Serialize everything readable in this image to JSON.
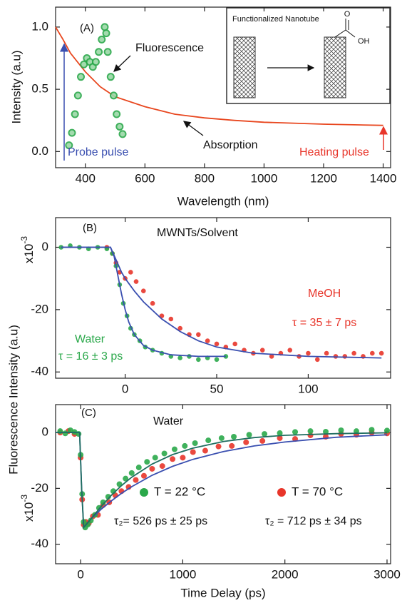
{
  "chart_data": [
    {
      "type": "scatter",
      "ylabel": "Intensity (a.u)",
      "xlabel": "Wavelength (nm)",
      "xlim": [
        300,
        1425
      ],
      "xticks": [
        400,
        600,
        800,
        1000,
        1200,
        1400
      ],
      "ylim": [
        -0.13,
        1.16
      ],
      "yticks": [
        {
          "value": 0,
          "label": "0.0"
        },
        0.5,
        {
          "value": 1,
          "label": "1.0"
        }
      ],
      "series": [
        {
          "mode": "lines",
          "color": "#e8461e",
          "x": [
            300,
            325,
            350,
            400,
            450,
            500,
            600,
            700,
            800,
            900,
            1000,
            1200,
            1400
          ],
          "values": [
            1.0,
            0.9,
            0.79,
            0.64,
            0.52,
            0.44,
            0.36,
            0.3,
            0.27,
            0.25,
            0.235,
            0.22,
            0.21
          ]
        },
        {
          "mode": "markers",
          "color": "#2aa84a",
          "x": [
            345,
            355,
            365,
            375,
            385,
            395,
            405,
            415,
            425,
            435,
            445,
            455,
            465,
            470,
            475,
            485,
            495,
            505,
            515,
            525
          ],
          "values": [
            0.05,
            0.15,
            0.3,
            0.45,
            0.6,
            0.7,
            0.75,
            0.72,
            0.68,
            0.72,
            0.8,
            0.9,
            1.0,
            0.95,
            0.8,
            0.6,
            0.45,
            0.3,
            0.2,
            0.14
          ]
        }
      ],
      "annotations": [
        {
          "text": "(A)",
          "color": "#111"
        },
        {
          "text": "Fluorescence",
          "color": "#111"
        },
        {
          "text": "Absorption",
          "color": "#111"
        },
        {
          "text": "Probe pulse",
          "color": "#3a4fb0"
        },
        {
          "text": "Heating pulse",
          "color": "#e8352a"
        }
      ],
      "inset": {
        "title": "Functionalized Nanotube",
        "labels": [
          "O",
          "OH"
        ]
      }
    },
    {
      "type": "scatter",
      "ylabel": "Fluorescence Intensity (a.u)",
      "multiplier": {
        "base": "x10",
        "exponent": "-3"
      },
      "xlim": [
        -38,
        145
      ],
      "xticks": [
        0,
        50,
        100
      ],
      "ylim": [
        -42,
        9.5
      ],
      "yticks": [
        0,
        -20,
        -40
      ],
      "series": [
        {
          "mode": "markers",
          "color": "#e8352a",
          "x": [
            -10,
            -7,
            -5,
            -3,
            0,
            3,
            6,
            10,
            15,
            20,
            25,
            30,
            35,
            40,
            45,
            50,
            55,
            60,
            65,
            70,
            75,
            80,
            85,
            90,
            95,
            100,
            105,
            110,
            115,
            120,
            125,
            130,
            135,
            140
          ],
          "values": [
            0,
            -2,
            -5,
            -8,
            -10,
            -8,
            -11,
            -14,
            -18,
            -22,
            -23,
            -26,
            -28,
            -28,
            -30,
            -31,
            -32,
            -31,
            -33,
            -34,
            -33,
            -35,
            -34,
            -33,
            -35,
            -34,
            -36,
            -34,
            -35,
            -35,
            -34,
            -35,
            -34,
            -34
          ]
        },
        {
          "mode": "markers",
          "color": "#2aa84a",
          "x": [
            -35,
            -30,
            -25,
            -20,
            -15,
            -10,
            -7,
            -5,
            -3,
            -1,
            1,
            3,
            5,
            8,
            11,
            15,
            20,
            25,
            30,
            35,
            40,
            45,
            50,
            55
          ],
          "values": [
            0,
            0.5,
            0,
            -0.5,
            0,
            -0.5,
            -2,
            -6,
            -12,
            -18,
            -22,
            -26,
            -28,
            -30,
            -32,
            -33,
            -34,
            -35,
            -35.5,
            -35,
            -36,
            -35.5,
            -36,
            -35
          ]
        },
        {
          "mode": "lines",
          "color": "#3a4fb0",
          "x": [
            -35,
            -8,
            -5,
            -2,
            0,
            5,
            10,
            20,
            30,
            40,
            50,
            70,
            100,
            140
          ],
          "values": [
            0,
            0,
            -4,
            -8,
            -10,
            -14,
            -17.5,
            -23,
            -27,
            -30,
            -32,
            -34,
            -35,
            -35.5
          ]
        },
        {
          "mode": "lines",
          "color": "#3a4fb0",
          "x": [
            -35,
            -8,
            -6,
            -4,
            -2,
            0,
            2,
            5,
            10,
            15,
            25,
            40,
            55
          ],
          "values": [
            0,
            0,
            -3,
            -9,
            -15,
            -20,
            -24,
            -28,
            -31.5,
            -33,
            -34.5,
            -35,
            -35
          ]
        }
      ],
      "annotations": [
        {
          "text": "(B)",
          "color": "#111"
        },
        {
          "text": "MWNTs/Solvent",
          "color": "#111"
        },
        {
          "text": "MeOH",
          "color": "#e8352a"
        },
        {
          "text": "τ = 35 ± 7 ps",
          "color": "#e8352a"
        },
        {
          "text": "Water",
          "color": "#2aa84a"
        },
        {
          "text": "τ = 16 ± 3 ps",
          "color": "#2aa84a"
        }
      ]
    },
    {
      "type": "scatter",
      "xlabel": "Time Delay (ps)",
      "multiplier": {
        "base": "x10",
        "exponent": "-3"
      },
      "xlim": [
        -245,
        3035
      ],
      "xticks": [
        0,
        1000,
        2000,
        3000
      ],
      "ylim": [
        -47,
        10
      ],
      "yticks": [
        0,
        -20,
        -40
      ],
      "series": [
        {
          "name": "T = 70 °C",
          "mode": "markers",
          "color": "#e8352a",
          "x": [
            -200,
            -120,
            -60,
            0,
            15,
            30,
            50,
            80,
            120,
            170,
            220,
            280,
            340,
            400,
            470,
            540,
            620,
            700,
            800,
            900,
            1000,
            1100,
            1220,
            1350,
            1480,
            1620,
            1780,
            1950,
            2100,
            2250,
            2400,
            2550,
            2700,
            2850,
            3000
          ],
          "values": [
            0,
            0.5,
            -0.5,
            -9,
            -24,
            -33,
            -32,
            -32.5,
            -30,
            -29.5,
            -26,
            -25,
            -22.5,
            -21,
            -19.5,
            -17,
            -15.5,
            -13,
            -12,
            -9.5,
            -9,
            -7,
            -6.5,
            -5,
            -4.8,
            -3.5,
            -3,
            -2,
            -2.3,
            -1,
            -1.5,
            -0.5,
            -0.8,
            0,
            -0.3
          ]
        },
        {
          "name": "T = 22 °C",
          "mode": "markers",
          "color": "#2aa84a",
          "x": [
            -200,
            -150,
            -100,
            -60,
            -20,
            0,
            15,
            30,
            45,
            70,
            100,
            140,
            180,
            220,
            270,
            320,
            380,
            440,
            500,
            570,
            650,
            730,
            820,
            920,
            1020,
            1120,
            1250,
            1380,
            1500,
            1650,
            1800,
            1950,
            2100,
            2250,
            2400,
            2550,
            2700,
            2850,
            3000
          ],
          "values": [
            0.5,
            -0.3,
            0.8,
            0.2,
            -0.5,
            -8,
            -22,
            -32,
            -34,
            -33,
            -31.5,
            -29.5,
            -27,
            -25,
            -23,
            -21,
            -18.5,
            -16.5,
            -14.5,
            -12.5,
            -10.5,
            -9,
            -7.5,
            -6,
            -4.8,
            -3.8,
            -2.8,
            -2,
            -1.5,
            -0.8,
            -0.5,
            -0.2,
            0.2,
            0.5,
            0.3,
            0.8,
            0.5,
            1,
            0.7
          ]
        },
        {
          "mode": "lines",
          "color": "#3a4fb0",
          "x": [
            -245,
            -10,
            10,
            30,
            100,
            200,
            300,
            400,
            500,
            700,
            900,
            1100,
            1400,
            1700,
            2000,
            2500,
            3000
          ],
          "values": [
            0,
            0,
            -20,
            -34,
            -31,
            -27.5,
            -24.5,
            -21.8,
            -19.4,
            -15.3,
            -12.1,
            -9.6,
            -6.8,
            -4.8,
            -3.4,
            -1.7,
            -0.8
          ]
        },
        {
          "mode": "lines",
          "color": "#1f6e60",
          "x": [
            -245,
            -10,
            10,
            30,
            100,
            200,
            300,
            400,
            500,
            700,
            900,
            1100,
            1400,
            1700,
            2000,
            2500,
            3000
          ],
          "values": [
            0,
            0,
            -20,
            -34,
            -31,
            -26.5,
            -22.5,
            -19,
            -16,
            -11.3,
            -7.9,
            -5.6,
            -3.2,
            -1.8,
            -1,
            -0.4,
            -0.1
          ]
        }
      ],
      "annotations": [
        {
          "text": "(C)",
          "color": "#111"
        },
        {
          "text": "Water",
          "color": "#111"
        },
        {
          "text": "τ₂= 526 ps ± 25 ps",
          "color": "#111"
        },
        {
          "text": "τ₂ = 712 ps ± 34 ps",
          "color": "#111"
        }
      ]
    }
  ]
}
